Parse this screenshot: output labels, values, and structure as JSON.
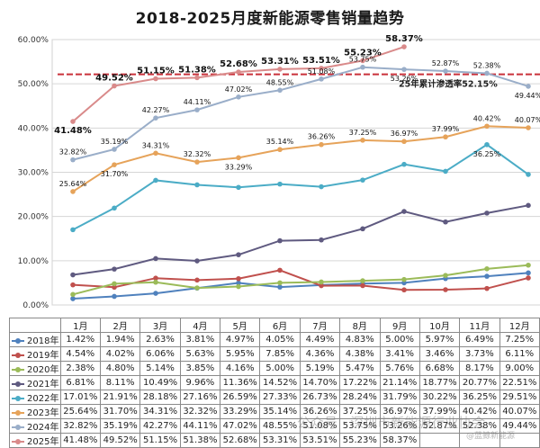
{
  "title": "2018-2025月度新能源零售销量趋势",
  "chart_data": {
    "type": "line",
    "title": "2018-2025月度新能源零售销量趋势",
    "categories": [
      "1月",
      "2月",
      "3月",
      "4月",
      "5月",
      "6月",
      "7月",
      "8月",
      "9月",
      "10月",
      "11月",
      "12月"
    ],
    "ylim": [
      0,
      60
    ],
    "yticks": [
      "0.00%",
      "10.00%",
      "20.00%",
      "30.00%",
      "40.00%",
      "50.00%",
      "60.00%"
    ],
    "grid": true,
    "series": [
      {
        "name": "2018年",
        "color": "#4f81bd",
        "values": [
          1.42,
          1.94,
          2.63,
          3.81,
          4.97,
          4.05,
          4.49,
          4.83,
          5.0,
          5.97,
          6.49,
          7.25
        ],
        "display": [
          "1.42%",
          "1.94%",
          "2.63%",
          "3.81%",
          "4.97%",
          "4.05%",
          "4.49%",
          "4.83%",
          "5.00%",
          "5.97%",
          "6.49%",
          "7.25%"
        ]
      },
      {
        "name": "2019年",
        "color": "#c0504d",
        "values": [
          4.54,
          4.02,
          6.06,
          5.63,
          5.95,
          7.85,
          4.36,
          4.38,
          3.41,
          3.46,
          3.73,
          6.11
        ],
        "display": [
          "4.54%",
          "4.02%",
          "6.06%",
          "5.63%",
          "5.95%",
          "7.85%",
          "4.36%",
          "4.38%",
          "3.41%",
          "3.46%",
          "3.73%",
          "6.11%"
        ]
      },
      {
        "name": "2020年",
        "color": "#9bbb59",
        "values": [
          2.38,
          4.8,
          5.14,
          3.85,
          4.16,
          5.0,
          5.19,
          5.47,
          5.76,
          6.68,
          8.17,
          9.0
        ],
        "display": [
          "2.38%",
          "4.80%",
          "5.14%",
          "3.85%",
          "4.16%",
          "5.00%",
          "5.19%",
          "5.47%",
          "5.76%",
          "6.68%",
          "8.17%",
          "9.00%"
        ]
      },
      {
        "name": "2021年",
        "color": "#5f5a80",
        "values": [
          6.81,
          8.11,
          10.49,
          9.96,
          11.36,
          14.52,
          14.7,
          17.22,
          21.14,
          18.77,
          20.77,
          22.51
        ],
        "display": [
          "6.81%",
          "8.11%",
          "10.49%",
          "9.96%",
          "11.36%",
          "14.52%",
          "14.70%",
          "17.22%",
          "21.14%",
          "18.77%",
          "20.77%",
          "22.51%"
        ]
      },
      {
        "name": "2022年",
        "color": "#4bacc6",
        "values": [
          17.01,
          21.91,
          28.18,
          27.16,
          26.59,
          27.33,
          26.73,
          28.24,
          31.79,
          30.22,
          36.25,
          29.51
        ],
        "display": [
          "17.01%",
          "21.91%",
          "28.18%",
          "27.16%",
          "26.59%",
          "27.33%",
          "26.73%",
          "28.24%",
          "31.79%",
          "30.22%",
          "36.25%",
          "29.51%"
        ]
      },
      {
        "name": "2023年",
        "color": "#e6a35a",
        "values": [
          25.64,
          31.7,
          34.31,
          32.32,
          33.29,
          35.14,
          36.26,
          37.25,
          36.97,
          37.99,
          40.42,
          40.07
        ],
        "display": [
          "25.64%",
          "31.70%",
          "34.31%",
          "32.32%",
          "33.29%",
          "35.14%",
          "36.26%",
          "37.25%",
          "36.97%",
          "37.99%",
          "40.42%",
          "40.07%"
        ]
      },
      {
        "name": "2024年",
        "color": "#9aaec9",
        "values": [
          32.82,
          35.19,
          42.27,
          44.11,
          47.02,
          48.55,
          51.08,
          53.75,
          53.26,
          52.87,
          52.38,
          49.44
        ],
        "display": [
          "32.82%",
          "35.19%",
          "42.27%",
          "44.11%",
          "47.02%",
          "48.55%",
          "51.08%",
          "53.75%",
          "53.26%",
          "52.87%",
          "52.38%",
          "49.44%"
        ]
      },
      {
        "name": "2025年",
        "color": "#d98a8a",
        "values": [
          41.48,
          49.52,
          51.15,
          51.38,
          52.68,
          53.31,
          53.51,
          55.23,
          58.37,
          null,
          null,
          null
        ],
        "display": [
          "41.48%",
          "49.52%",
          "51.15%",
          "51.38%",
          "52.68%",
          "53.31%",
          "53.51%",
          "55.23%",
          "58.37%",
          "",
          "",
          ""
        ]
      }
    ],
    "reference_line": {
      "value": 52.15,
      "label": "25年累计渗透率52.15%",
      "color": "#c9303a"
    },
    "label_series": [
      {
        "series": 7,
        "positions": [
          "below",
          "above",
          "above",
          "above",
          "above",
          "above",
          "above",
          "above",
          "above"
        ]
      },
      {
        "series": 6,
        "positions": [
          "above",
          "above",
          "above",
          "above",
          "above",
          "above",
          "above",
          "above",
          "below",
          "above",
          "above",
          "below"
        ]
      },
      {
        "series": 5,
        "positions": [
          "above",
          "below",
          "above",
          "above",
          "below",
          "above",
          "above",
          "above",
          "above",
          "above",
          "above",
          "above"
        ]
      },
      {
        "series": 4,
        "positions": [
          null,
          null,
          null,
          null,
          null,
          null,
          null,
          null,
          null,
          null,
          "below",
          null
        ]
      }
    ]
  },
  "watermark": {
    "left_text": "公众号 · 深圳市新能源行业协会",
    "right_text": "@蓝鲸新能源"
  }
}
